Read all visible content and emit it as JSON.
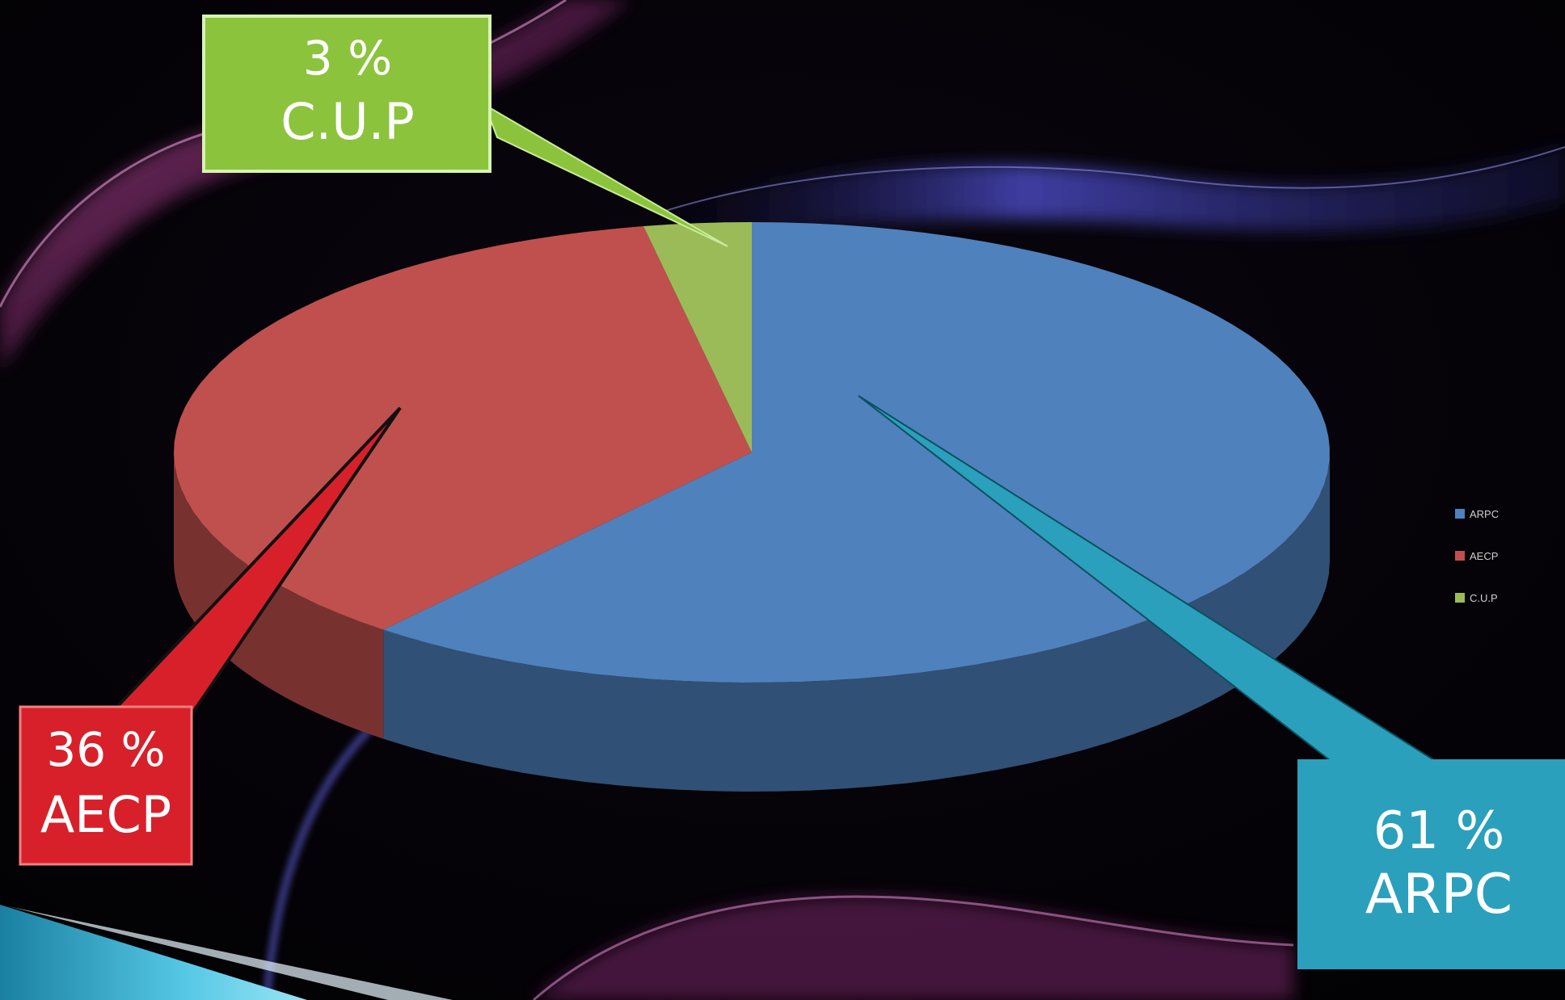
{
  "chart_data": {
    "type": "pie",
    "slices": [
      {
        "name": "ARPC",
        "value": 61,
        "label_value": "61 %",
        "color": "#4f81bd"
      },
      {
        "name": "AECP",
        "value": 36,
        "label_value": "36 %",
        "color": "#c0504d"
      },
      {
        "name": "C.U.P",
        "value": 3,
        "label_value": "3 %",
        "color": "#9bbb59"
      }
    ],
    "legend": {
      "placement": "right",
      "entries": [
        "ARPC",
        "AECP",
        "C.U.P"
      ]
    }
  },
  "callouts": {
    "arpc": {
      "value": "61 %",
      "name": "ARPC",
      "color": "#2aa0bc"
    },
    "aecp": {
      "value": "36 %",
      "name": "AECP",
      "color": "#d8202a"
    },
    "cup": {
      "value": "3 %",
      "name": "C.U.P",
      "color": "#8cc33c"
    }
  },
  "colors": {
    "background": "#050308",
    "swirl_magenta": "#c04a9a",
    "swirl_blue": "#3a3ab0",
    "teal_banner": "#38b0d0"
  }
}
